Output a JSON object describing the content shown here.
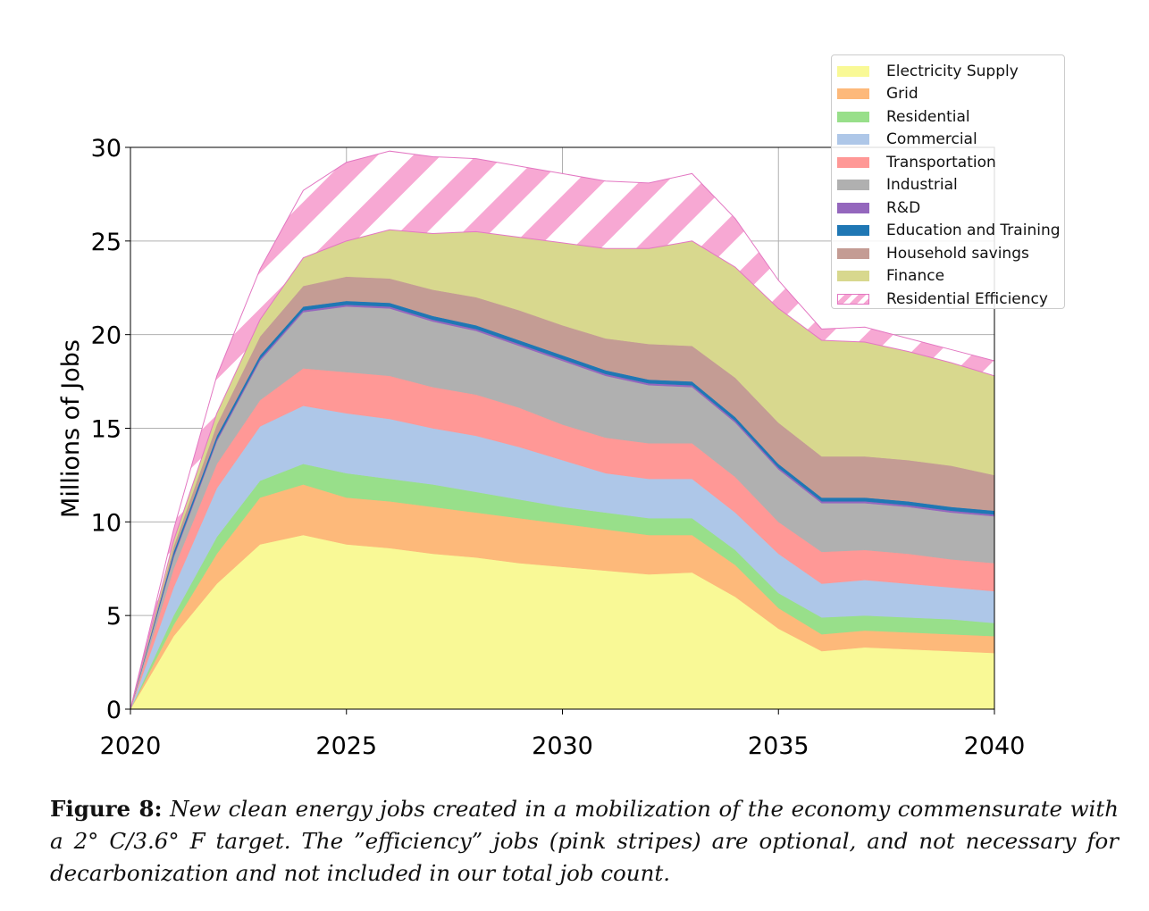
{
  "chart_data": {
    "type": "area",
    "stacked": true,
    "title": "",
    "xlabel": "",
    "ylabel": "Millions of Jobs",
    "xlim": [
      2020,
      2040
    ],
    "ylim": [
      0,
      30
    ],
    "xticks": [
      "2020",
      "2025",
      "2030",
      "2035",
      "2040"
    ],
    "yticks": [
      "0",
      "5",
      "10",
      "15",
      "20",
      "25",
      "30"
    ],
    "grid": true,
    "legend_position": "top-right",
    "x": [
      2020,
      2021,
      2022,
      2023,
      2024,
      2025,
      2026,
      2027,
      2028,
      2029,
      2030,
      2031,
      2032,
      2033,
      2034,
      2035,
      2036,
      2037,
      2038,
      2039,
      2040
    ],
    "series": [
      {
        "name": "Electricity Supply",
        "color": "#f9f996",
        "values": [
          0,
          3.9,
          6.7,
          8.8,
          9.3,
          8.8,
          8.6,
          8.3,
          8.1,
          7.8,
          7.6,
          7.4,
          7.2,
          7.3,
          6.0,
          4.3,
          3.1,
          3.3,
          3.2,
          3.1,
          3.0
        ]
      },
      {
        "name": "Grid",
        "color": "#fdb97a",
        "values": [
          0,
          0.6,
          1.6,
          2.5,
          2.7,
          2.5,
          2.5,
          2.5,
          2.4,
          2.4,
          2.3,
          2.2,
          2.1,
          2.0,
          1.7,
          1.1,
          0.9,
          0.9,
          0.9,
          0.9,
          0.9
        ]
      },
      {
        "name": "Residential",
        "color": "#98df8a",
        "values": [
          0,
          0.5,
          0.9,
          0.9,
          1.1,
          1.3,
          1.2,
          1.2,
          1.1,
          1.0,
          0.9,
          0.9,
          0.9,
          0.9,
          0.8,
          0.8,
          0.9,
          0.8,
          0.8,
          0.8,
          0.7
        ]
      },
      {
        "name": "Commercial",
        "color": "#aec7e8",
        "values": [
          0,
          1.5,
          2.6,
          2.9,
          3.1,
          3.2,
          3.2,
          3.0,
          3.0,
          2.8,
          2.5,
          2.1,
          2.1,
          2.1,
          2.0,
          2.1,
          1.8,
          1.9,
          1.8,
          1.7,
          1.7
        ]
      },
      {
        "name": "Transportation",
        "color": "#ff9896",
        "values": [
          0,
          1.0,
          1.3,
          1.4,
          2.0,
          2.2,
          2.3,
          2.2,
          2.2,
          2.1,
          1.9,
          1.9,
          1.9,
          1.9,
          1.9,
          1.7,
          1.7,
          1.6,
          1.6,
          1.5,
          1.5
        ]
      },
      {
        "name": "Industrial",
        "color": "#b0b0b0",
        "values": [
          0,
          0.6,
          1.2,
          2.1,
          3.0,
          3.5,
          3.6,
          3.5,
          3.4,
          3.3,
          3.4,
          3.3,
          3.1,
          3.0,
          2.9,
          2.8,
          2.6,
          2.5,
          2.5,
          2.5,
          2.5
        ]
      },
      {
        "name": "R&D",
        "color": "#9467bd",
        "values": [
          0,
          0.1,
          0.1,
          0.1,
          0.1,
          0.1,
          0.1,
          0.1,
          0.1,
          0.1,
          0.1,
          0.1,
          0.1,
          0.1,
          0.1,
          0.1,
          0.1,
          0.1,
          0.1,
          0.1,
          0.1
        ]
      },
      {
        "name": "Education and Training",
        "color": "#1f77b4",
        "values": [
          0,
          0.2,
          0.2,
          0.2,
          0.2,
          0.2,
          0.2,
          0.2,
          0.2,
          0.2,
          0.2,
          0.2,
          0.2,
          0.2,
          0.2,
          0.2,
          0.2,
          0.2,
          0.2,
          0.2,
          0.2
        ]
      },
      {
        "name": "Household savings",
        "color": "#c49c94",
        "values": [
          0,
          0.3,
          0.6,
          1.0,
          1.1,
          1.3,
          1.3,
          1.4,
          1.5,
          1.6,
          1.6,
          1.7,
          1.9,
          1.9,
          2.1,
          2.2,
          2.2,
          2.2,
          2.2,
          2.2,
          1.9
        ]
      },
      {
        "name": "Finance",
        "color": "#d8d88e",
        "values": [
          0,
          0.3,
          0.6,
          0.9,
          1.5,
          1.9,
          2.6,
          3.0,
          3.5,
          3.9,
          4.4,
          4.8,
          5.1,
          5.6,
          5.9,
          6.1,
          6.2,
          6.1,
          5.8,
          5.5,
          5.3
        ]
      },
      {
        "name": "Residential Efficiency",
        "color": "#f7a8d3",
        "hatch": true,
        "values": [
          0,
          0.6,
          2.0,
          2.7,
          3.6,
          4.2,
          4.2,
          4.1,
          3.9,
          3.8,
          3.7,
          3.6,
          3.5,
          3.6,
          2.6,
          1.5,
          0.6,
          0.8,
          0.7,
          0.7,
          0.8
        ]
      }
    ]
  },
  "caption": {
    "label": "Figure 8:",
    "text": "New clean energy jobs created in a mobilization of the economy commensurate with a 2° C/3.6° F target. The ”efficiency” jobs (pink stripes) are optional, and not necessary for decarbonization and not included in our total job count."
  }
}
